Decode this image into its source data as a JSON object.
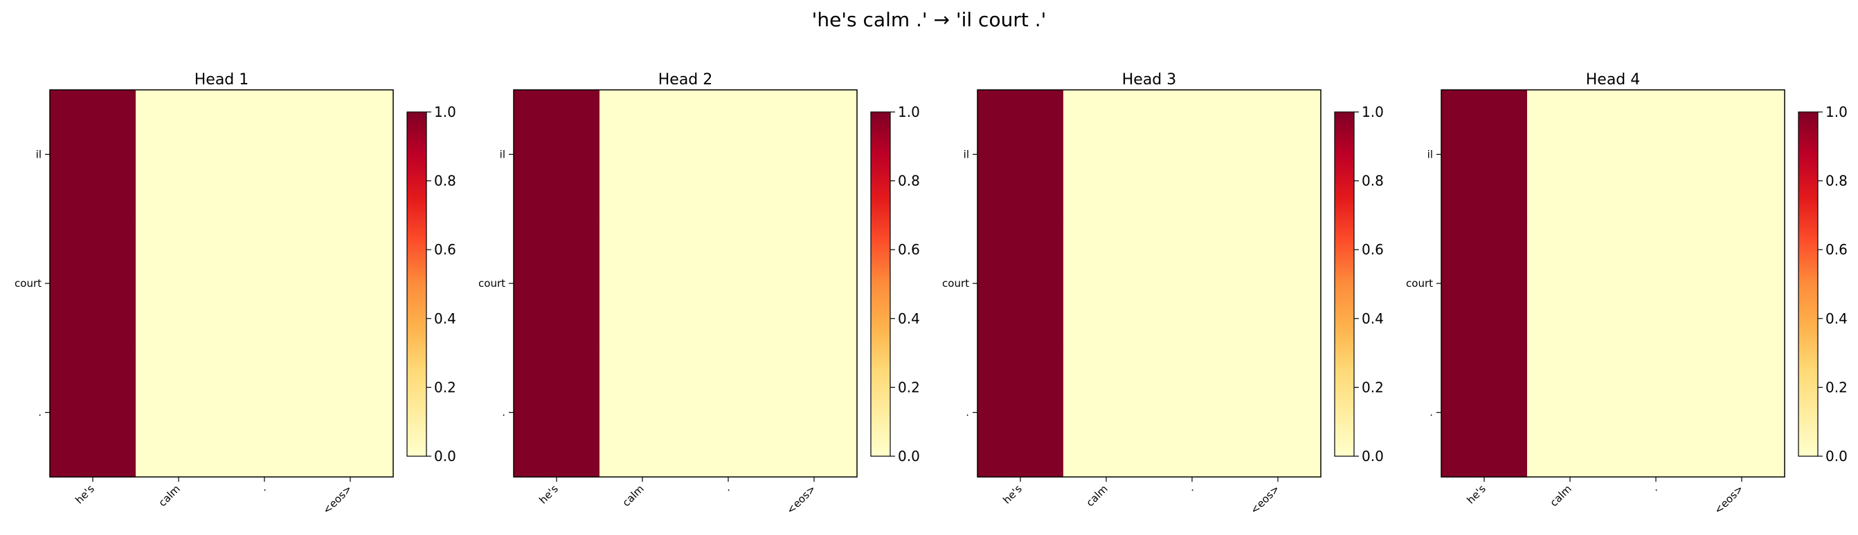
{
  "figure": {
    "title": "'he's calm .' → 'il court .'"
  },
  "colorbar": {
    "ticks": [
      0.0,
      0.2,
      0.4,
      0.6,
      0.8,
      1.0
    ],
    "tick_labels": [
      "0.0",
      "0.2",
      "0.4",
      "0.6",
      "0.8",
      "1.0"
    ],
    "range": [
      0.0,
      1.0
    ],
    "colormap": "YlOrRd",
    "low_color": "#ffffcc",
    "high_color": "#800026"
  },
  "chart_data": [
    {
      "type": "heatmap",
      "title": "Head 1",
      "x_categories": [
        "he's",
        "calm",
        ".",
        "<eos>"
      ],
      "y_categories": [
        "il",
        "court",
        "."
      ],
      "values": [
        [
          1,
          0,
          0,
          0
        ],
        [
          1,
          0,
          0,
          0
        ],
        [
          1,
          0,
          0,
          0
        ]
      ],
      "vmin": 0,
      "vmax": 1
    },
    {
      "type": "heatmap",
      "title": "Head 2",
      "x_categories": [
        "he's",
        "calm",
        ".",
        "<eos>"
      ],
      "y_categories": [
        "il",
        "court",
        "."
      ],
      "values": [
        [
          1,
          0,
          0,
          0
        ],
        [
          1,
          0,
          0,
          0
        ],
        [
          1,
          0,
          0,
          0
        ]
      ],
      "vmin": 0,
      "vmax": 1
    },
    {
      "type": "heatmap",
      "title": "Head 3",
      "x_categories": [
        "he's",
        "calm",
        ".",
        "<eos>"
      ],
      "y_categories": [
        "il",
        "court",
        "."
      ],
      "values": [
        [
          1,
          0,
          0,
          0
        ],
        [
          1,
          0,
          0,
          0
        ],
        [
          1,
          0,
          0,
          0
        ]
      ],
      "vmin": 0,
      "vmax": 1
    },
    {
      "type": "heatmap",
      "title": "Head 4",
      "x_categories": [
        "he's",
        "calm",
        ".",
        "<eos>"
      ],
      "y_categories": [
        "il",
        "court",
        "."
      ],
      "values": [
        [
          1,
          0,
          0,
          0
        ],
        [
          1,
          0,
          0,
          0
        ],
        [
          1,
          0,
          0,
          0
        ]
      ],
      "vmin": 0,
      "vmax": 1
    }
  ]
}
